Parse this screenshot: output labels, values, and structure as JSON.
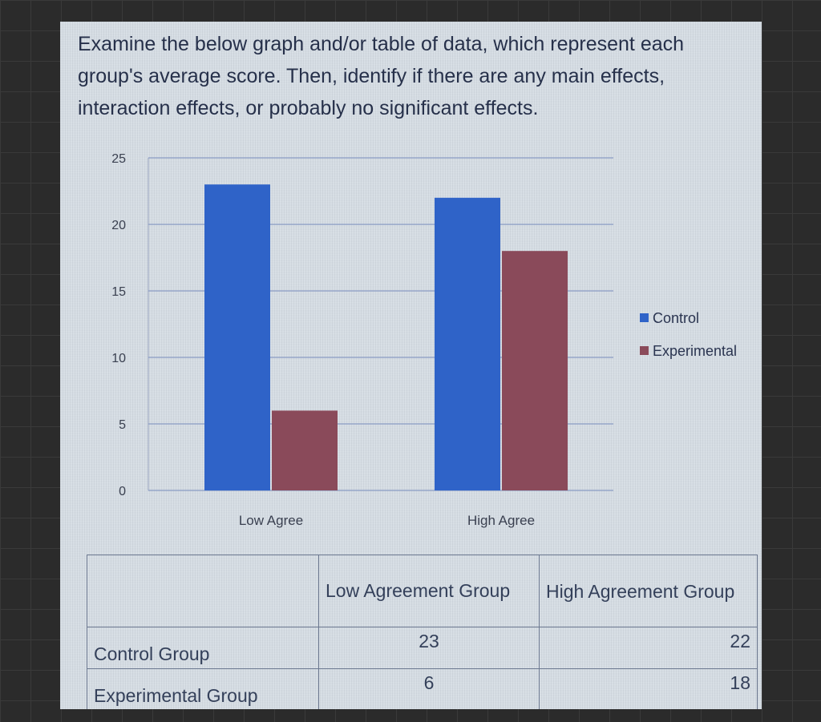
{
  "question": "Examine the below graph and/or table of data, which represent each group's average score. Then, identify if there are any main effects, interaction effects, or probably no significant effects.",
  "chart_data": {
    "type": "bar",
    "title": "",
    "xlabel": "",
    "ylabel": "",
    "categories": [
      "Low Agree",
      "High Agree"
    ],
    "series": [
      {
        "name": "Control",
        "values": [
          23,
          22
        ],
        "color": "#2f63c8"
      },
      {
        "name": "Experimental",
        "values": [
          6,
          18
        ],
        "color": "#8a4a5a"
      }
    ],
    "ylim": [
      0,
      25
    ],
    "yticks": [
      0,
      5,
      10,
      15,
      20,
      25
    ],
    "grid": true,
    "legend": "right"
  },
  "table": {
    "headers": [
      "",
      "Low Agreement Group",
      "High Agreement Group"
    ],
    "rows": [
      {
        "label": "Control Group",
        "values": [
          "23",
          "22"
        ]
      },
      {
        "label": "Experimental Group",
        "values": [
          "6",
          "18"
        ]
      }
    ]
  }
}
